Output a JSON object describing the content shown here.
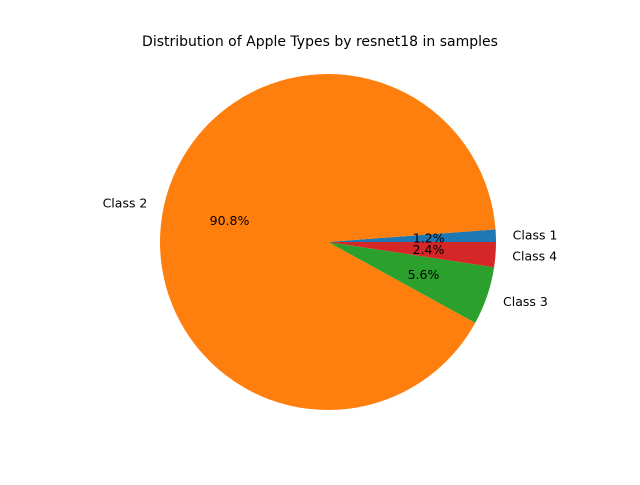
{
  "chart_data": {
    "type": "pie",
    "title": "Distribution of Apple Types by resnet18 in samples",
    "start_angle_deg": 0,
    "direction": "counterclockwise",
    "slices": [
      {
        "label": "Class 1",
        "percent": 1.2,
        "pct_label": "1.2%",
        "color": "#1f77b4"
      },
      {
        "label": "Class 2",
        "percent": 90.8,
        "pct_label": "90.8%",
        "color": "#ff7f0e"
      },
      {
        "label": "Class 3",
        "percent": 5.6,
        "pct_label": "5.6%",
        "color": "#2ca02c"
      },
      {
        "label": "Class 4",
        "percent": 2.4,
        "pct_label": "2.4%",
        "color": "#d62728"
      }
    ]
  }
}
